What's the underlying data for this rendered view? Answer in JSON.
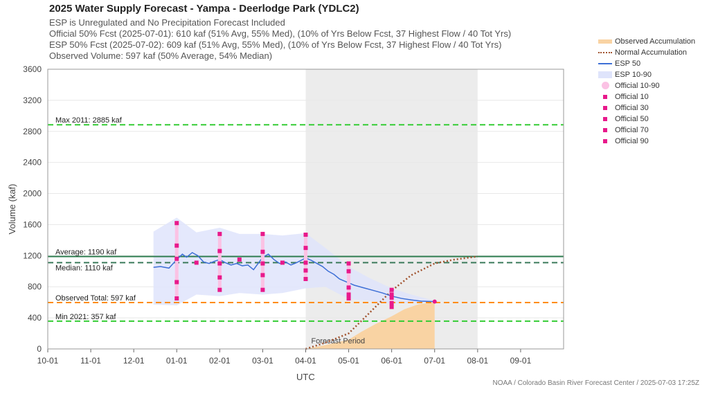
{
  "header": {
    "title": "2025 Water Supply Forecast - Yampa - Deerlodge Park (YDLC2)",
    "line1": "ESP is Unregulated and No Precipitation Forecast Included",
    "line2": "Official 50% Fcst (2025-07-01): 610 kaf (51% Avg, 55% Med), (10% of Yrs Below Fcst, 37 Highest Flow / 40 Tot Yrs)",
    "line3": "ESP 50% Fcst (2025-07-02): 609 kaf (51% Avg, 55% Med), (10% of Yrs Below Fcst, 37 Highest Flow / 40 Tot Yrs)",
    "line4": "Observed Volume: 597 kaf (50% Average, 54% Median)"
  },
  "footer": "NOAA / Colorado Basin River Forecast Center / 2025-07-03 17:25Z",
  "colors": {
    "observed": "#f9d3a3",
    "normal": "#a0522d",
    "esp50": "#3d6fd6",
    "esp_band": "#dfe4fb",
    "official_band": "#fbc2e4",
    "official_point": "#e8198b",
    "green_dash": "#33cc33",
    "average": "#2e7d4f",
    "median": "#3a7a5a",
    "observed_total": "#ff8c00",
    "forecast_shade": "#ececec"
  },
  "chart_data": {
    "type": "line",
    "xlabel": "UTC",
    "ylabel": "Volume (kaf)",
    "ylim": [
      0,
      3600
    ],
    "yticks": [
      0,
      400,
      800,
      1200,
      1600,
      2000,
      2400,
      2800,
      3200,
      3600
    ],
    "xticks": [
      "10-01",
      "11-01",
      "12-01",
      "01-01",
      "02-01",
      "03-01",
      "04-01",
      "05-01",
      "06-01",
      "07-01",
      "08-01",
      "09-01"
    ],
    "forecast_period": {
      "label": "Forecast Period",
      "start": "04-01",
      "end": "08-01"
    },
    "hlines": [
      {
        "name": "max",
        "label": "Max 2011: 2885 kaf",
        "value": 2885,
        "style": "green-dash"
      },
      {
        "name": "average",
        "label": "Average: 1190 kaf",
        "value": 1190,
        "style": "solid-green"
      },
      {
        "name": "median",
        "label": "Median: 1110 kaf",
        "value": 1110,
        "style": "dark-dash"
      },
      {
        "name": "observed-total",
        "label": "Observed Total: 597 kaf",
        "value": 597,
        "style": "orange-dash"
      },
      {
        "name": "min",
        "label": "Min 2021: 357 kaf",
        "value": 357,
        "style": "green-dash"
      }
    ],
    "series": [
      {
        "name": "Observed Accumulation",
        "x": [
          "04-01",
          "04-15",
          "05-01",
          "05-10",
          "05-20",
          "06-01",
          "06-10",
          "06-20",
          "07-01"
        ],
        "values": [
          0,
          50,
          120,
          220,
          320,
          420,
          510,
          575,
          597
        ]
      },
      {
        "name": "Normal Accumulation",
        "x": [
          "04-01",
          "04-15",
          "05-01",
          "05-15",
          "06-01",
          "06-15",
          "07-01",
          "07-15",
          "08-01"
        ],
        "values": [
          0,
          80,
          200,
          450,
          750,
          950,
          1100,
          1150,
          1190
        ]
      },
      {
        "name": "ESP 50",
        "x": [
          "12-15",
          "12-20",
          "12-26",
          "01-01",
          "01-05",
          "01-08",
          "01-12",
          "01-16",
          "01-20",
          "01-24",
          "01-28",
          "02-01",
          "02-05",
          "02-09",
          "02-13",
          "02-17",
          "02-21",
          "02-25",
          "03-01",
          "03-05",
          "03-09",
          "03-13",
          "03-17",
          "03-21",
          "03-25",
          "04-01",
          "04-05",
          "04-09",
          "04-13",
          "04-17",
          "04-21",
          "04-25",
          "05-01",
          "05-05",
          "05-09",
          "05-13",
          "05-17",
          "05-21",
          "05-25",
          "06-01",
          "06-08",
          "06-15",
          "06-22",
          "07-01"
        ],
        "values": [
          1050,
          1060,
          1040,
          1150,
          1220,
          1180,
          1240,
          1200,
          1120,
          1100,
          1130,
          1150,
          1110,
          1080,
          1100,
          1070,
          1080,
          1020,
          1180,
          1220,
          1150,
          1100,
          1120,
          1080,
          1110,
          1170,
          1140,
          1100,
          1060,
          1000,
          960,
          900,
          850,
          820,
          800,
          780,
          760,
          740,
          720,
          680,
          650,
          630,
          615,
          609
        ]
      }
    ],
    "esp_band": {
      "name": "ESP 10-90",
      "x": [
        "12-15",
        "01-01",
        "01-15",
        "02-01",
        "02-15",
        "03-01",
        "03-15",
        "04-01",
        "04-15",
        "05-01",
        "05-15",
        "06-01",
        "06-15",
        "07-01"
      ],
      "low": [
        570,
        560,
        700,
        680,
        720,
        700,
        720,
        780,
        800,
        640,
        620,
        580,
        590,
        600
      ],
      "high": [
        1510,
        1690,
        1500,
        1560,
        1480,
        1480,
        1460,
        1490,
        1300,
        1060,
        920,
        780,
        700,
        620
      ]
    },
    "official": {
      "band_name": "Official 10-90",
      "points_names": [
        "Official 10",
        "Official 30",
        "Official 50",
        "Official 70",
        "Official 90"
      ],
      "dates": [
        "01-01",
        "02-01",
        "03-01",
        "04-01",
        "05-01",
        "06-01"
      ],
      "p10": [
        650,
        760,
        760,
        900,
        650,
        540
      ],
      "p30": [
        860,
        920,
        950,
        1010,
        700,
        590
      ],
      "p50": [
        1160,
        1100,
        1100,
        1110,
        790,
        660
      ],
      "p70": [
        1330,
        1260,
        1250,
        1300,
        1000,
        700
      ],
      "p90": [
        1620,
        1480,
        1480,
        1470,
        1100,
        760
      ],
      "monthly_points": {
        "x": [
          "01-15",
          "02-15",
          "03-15"
        ],
        "values": [
          1110,
          1150,
          1110
        ]
      }
    },
    "legend": {
      "placement": "right",
      "entries": [
        "Observed Accumulation",
        "Normal Accumulation",
        "ESP 50",
        "ESP 10-90",
        "Official 10-90",
        "Official 10",
        "Official 30",
        "Official 50",
        "Official 70",
        "Official 90"
      ]
    }
  }
}
